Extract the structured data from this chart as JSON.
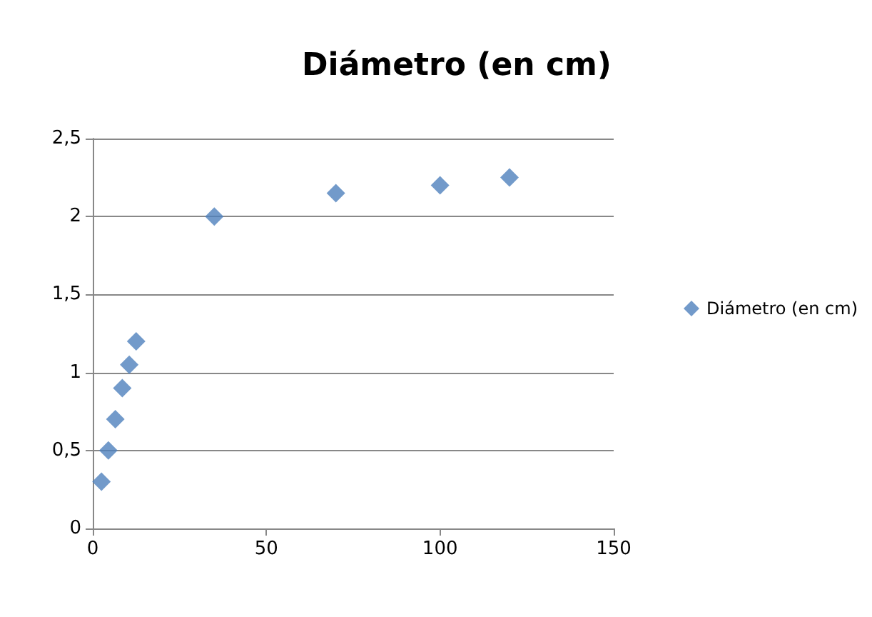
{
  "chart_data": {
    "type": "scatter",
    "title": "Diámetro (en cm)",
    "x": [
      2.5,
      4.5,
      6.5,
      8.5,
      10.5,
      12.5,
      35,
      70,
      100,
      120
    ],
    "series": [
      {
        "name": "Diámetro (en cm)",
        "color": "#4f81bd",
        "values": [
          0.3,
          0.5,
          0.7,
          0.9,
          1.05,
          1.2,
          2,
          2.15,
          2.2,
          2.25
        ]
      }
    ],
    "xlim": [
      0,
      150
    ],
    "xticks": [
      0,
      50,
      100,
      150
    ],
    "ylim": [
      0,
      2.5
    ],
    "yticks": [
      0,
      {
        "value": 0.5,
        "label": "0,5"
      },
      1,
      {
        "value": 1.5,
        "label": "1,5"
      },
      2,
      {
        "value": 2.5,
        "label": "2,5"
      }
    ],
    "grid": "y",
    "legend": "right",
    "marker": "diamond"
  }
}
